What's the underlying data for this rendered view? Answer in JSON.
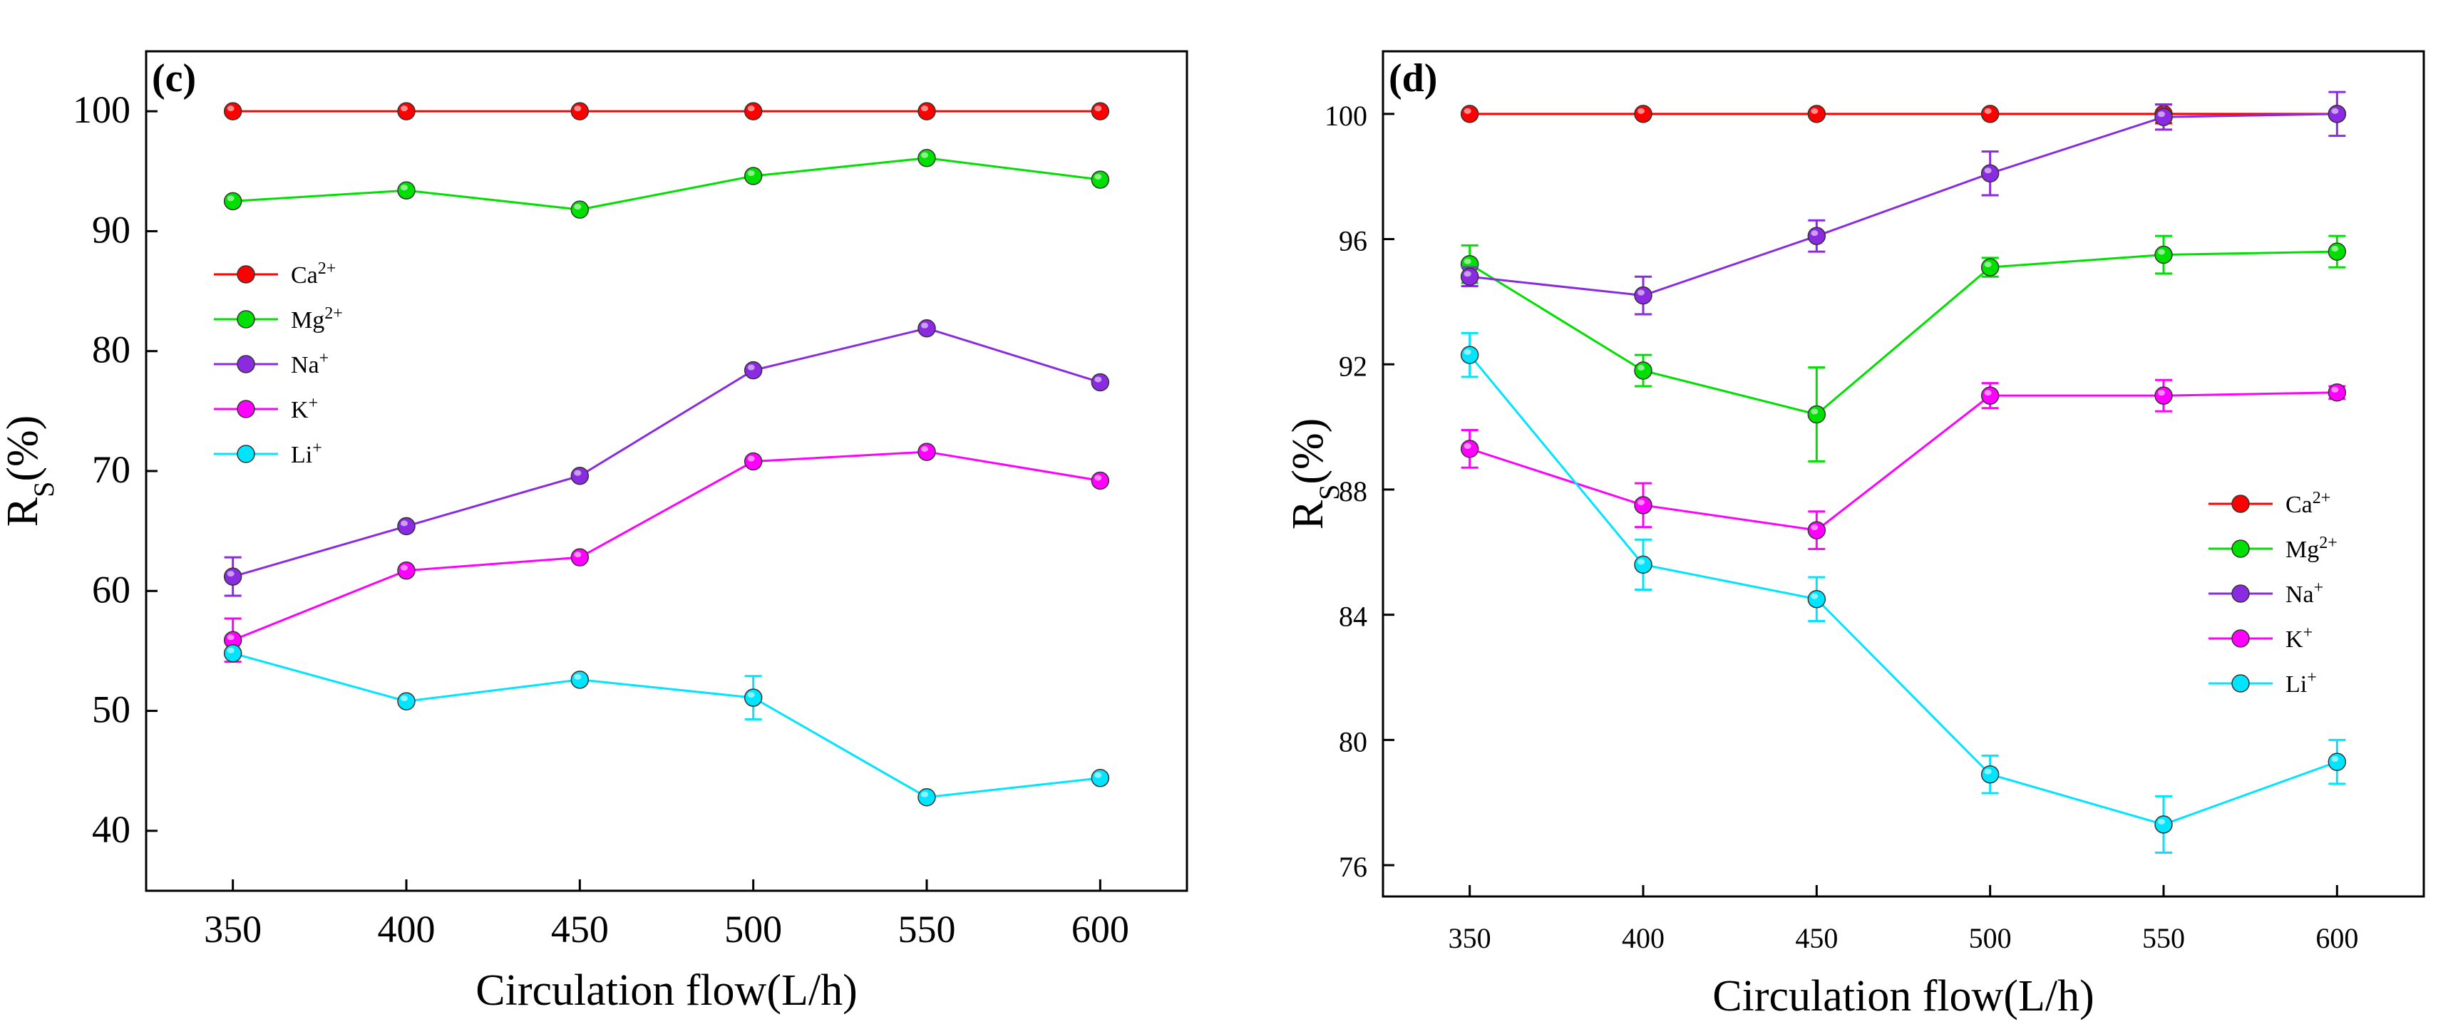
{
  "chart_data": [
    {
      "type": "line",
      "panel_label": "(c)",
      "xlabel": "Circulation flow(L/h)",
      "ylabel": "R_S(%)",
      "ylabel_main": "R",
      "ylabel_sub": "S",
      "ylabel_suffix": "(%)",
      "x": [
        350,
        400,
        450,
        500,
        550,
        600
      ],
      "xlim": [
        325,
        625
      ],
      "ylim": [
        35,
        105
      ],
      "xticks": [
        350,
        400,
        450,
        500,
        550,
        600
      ],
      "yticks": [
        40,
        50,
        60,
        70,
        80,
        90,
        100
      ],
      "legend_position": "center-left",
      "series": [
        {
          "name": "Ca2+",
          "label_base": "Ca",
          "label_sup": "2+",
          "color": "#ff0000",
          "values": [
            100,
            100,
            100,
            100,
            100,
            100
          ],
          "errors": [
            0,
            0,
            0,
            0,
            0,
            0
          ]
        },
        {
          "name": "Mg2+",
          "label_base": "Mg",
          "label_sup": "2+",
          "color": "#00e000",
          "values": [
            92.5,
            93.4,
            91.8,
            94.6,
            96.1,
            94.3
          ],
          "errors": [
            0,
            0,
            0,
            0,
            0,
            0
          ]
        },
        {
          "name": "Na+",
          "label_base": "Na",
          "label_sup": "+",
          "color": "#8a2be2",
          "values": [
            61.2,
            65.4,
            69.6,
            78.4,
            81.9,
            77.4
          ],
          "errors": [
            1.6,
            0,
            0,
            0,
            0,
            0
          ]
        },
        {
          "name": "K+",
          "label_base": "K",
          "label_sup": "+",
          "color": "#ff00ff",
          "values": [
            55.9,
            61.7,
            62.8,
            70.8,
            71.6,
            69.2
          ],
          "errors": [
            1.8,
            0,
            0,
            0,
            0,
            0
          ]
        },
        {
          "name": "Li+",
          "label_base": "Li",
          "label_sup": "+",
          "color": "#00e5ff",
          "values": [
            54.8,
            50.8,
            52.6,
            51.1,
            42.8,
            44.4
          ],
          "errors": [
            0,
            0,
            0,
            1.8,
            0,
            0
          ]
        }
      ]
    },
    {
      "type": "line",
      "panel_label": "(d)",
      "xlabel": "Circulation flow(L/h)",
      "ylabel": "R_S(%)",
      "ylabel_main": "R",
      "ylabel_sub": "S",
      "ylabel_suffix": "(%)",
      "x": [
        350,
        400,
        450,
        500,
        550,
        600
      ],
      "xlim": [
        325,
        625
      ],
      "ylim": [
        75,
        102
      ],
      "xticks": [
        350,
        400,
        450,
        500,
        550,
        600
      ],
      "yticks": [
        76,
        80,
        84,
        88,
        92,
        96,
        100
      ],
      "legend_position": "center-right",
      "series": [
        {
          "name": "Ca2+",
          "label_base": "Ca",
          "label_sup": "2+",
          "color": "#ff0000",
          "values": [
            100,
            100,
            100,
            100,
            100,
            100
          ],
          "errors": [
            0,
            0,
            0,
            0,
            0.3,
            0
          ]
        },
        {
          "name": "Mg2+",
          "label_base": "Mg",
          "label_sup": "2+",
          "color": "#00e000",
          "values": [
            95.2,
            91.8,
            90.4,
            95.1,
            95.5,
            95.6
          ],
          "errors": [
            0.6,
            0.5,
            1.5,
            0.3,
            0.6,
            0.5
          ]
        },
        {
          "name": "Na+",
          "label_base": "Na",
          "label_sup": "+",
          "color": "#8a2be2",
          "values": [
            94.8,
            94.2,
            96.1,
            98.1,
            99.9,
            100.0
          ],
          "errors": [
            0.3,
            0.6,
            0.5,
            0.7,
            0.4,
            0.7
          ]
        },
        {
          "name": "K+",
          "label_base": "K",
          "label_sup": "+",
          "color": "#ff00ff",
          "values": [
            89.3,
            87.5,
            86.7,
            91.0,
            91.0,
            91.1
          ],
          "errors": [
            0.6,
            0.7,
            0.6,
            0.4,
            0.5,
            0.2
          ]
        },
        {
          "name": "Li+",
          "label_base": "Li",
          "label_sup": "+",
          "color": "#00e5ff",
          "values": [
            92.3,
            85.6,
            84.5,
            78.9,
            77.3,
            79.3
          ],
          "errors": [
            0.7,
            0.8,
            0.7,
            0.6,
            0.9,
            0.7
          ]
        }
      ]
    }
  ]
}
